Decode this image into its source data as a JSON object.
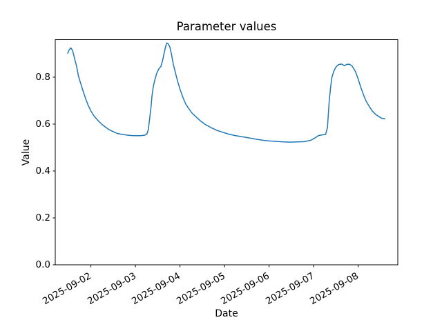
{
  "figure": {
    "title": "Parameter values",
    "xlabel": "Date",
    "ylabel": "Value"
  },
  "chart_data": {
    "type": "line",
    "title": "Parameter values",
    "xlabel": "Date",
    "ylabel": "Value",
    "grid": false,
    "legend": "none",
    "background_color": "#ffffff",
    "x_axis": {
      "unit": "days since 2025-09-01 00:00",
      "lim": [
        0.2,
        7.89
      ],
      "tick_rotation_deg": 30,
      "ticks": [
        {
          "t": 1,
          "label": "2025-09-02"
        },
        {
          "t": 2,
          "label": "2025-09-03"
        },
        {
          "t": 3,
          "label": "2025-09-04"
        },
        {
          "t": 4,
          "label": "2025-09-05"
        },
        {
          "t": 5,
          "label": "2025-09-06"
        },
        {
          "t": 6,
          "label": "2025-09-07"
        },
        {
          "t": 7,
          "label": "2025-09-08"
        }
      ]
    },
    "y_axis": {
      "lim": [
        0,
        0.96
      ],
      "ticks": [
        0.0,
        0.2,
        0.4,
        0.6,
        0.8
      ]
    },
    "series": [
      {
        "name": "parameter-values",
        "color": "#1f77b4",
        "line_width": 1.5,
        "points": [
          [
            0.48,
            0.902
          ],
          [
            0.51,
            0.916
          ],
          [
            0.55,
            0.925
          ],
          [
            0.59,
            0.913
          ],
          [
            0.63,
            0.883
          ],
          [
            0.68,
            0.845
          ],
          [
            0.72,
            0.806
          ],
          [
            0.77,
            0.774
          ],
          [
            0.82,
            0.744
          ],
          [
            0.88,
            0.709
          ],
          [
            0.94,
            0.68
          ],
          [
            1.0,
            0.656
          ],
          [
            1.08,
            0.632
          ],
          [
            1.16,
            0.615
          ],
          [
            1.24,
            0.6
          ],
          [
            1.32,
            0.588
          ],
          [
            1.41,
            0.576
          ],
          [
            1.5,
            0.568
          ],
          [
            1.59,
            0.56
          ],
          [
            1.7,
            0.556
          ],
          [
            1.81,
            0.553
          ],
          [
            1.92,
            0.551
          ],
          [
            2.03,
            0.55
          ],
          [
            2.14,
            0.551
          ],
          [
            2.22,
            0.553
          ],
          [
            2.26,
            0.559
          ],
          [
            2.29,
            0.577
          ],
          [
            2.32,
            0.624
          ],
          [
            2.35,
            0.674
          ],
          [
            2.37,
            0.718
          ],
          [
            2.4,
            0.759
          ],
          [
            2.44,
            0.792
          ],
          [
            2.48,
            0.818
          ],
          [
            2.53,
            0.837
          ],
          [
            2.57,
            0.845
          ],
          [
            2.61,
            0.871
          ],
          [
            2.65,
            0.907
          ],
          [
            2.68,
            0.933
          ],
          [
            2.705,
            0.946
          ],
          [
            2.73,
            0.943
          ],
          [
            2.77,
            0.93
          ],
          [
            2.81,
            0.898
          ],
          [
            2.85,
            0.856
          ],
          [
            2.9,
            0.818
          ],
          [
            2.95,
            0.78
          ],
          [
            3.01,
            0.744
          ],
          [
            3.07,
            0.712
          ],
          [
            3.13,
            0.685
          ],
          [
            3.19,
            0.668
          ],
          [
            3.27,
            0.647
          ],
          [
            3.37,
            0.629
          ],
          [
            3.47,
            0.612
          ],
          [
            3.58,
            0.597
          ],
          [
            3.71,
            0.584
          ],
          [
            3.83,
            0.573
          ],
          [
            3.96,
            0.565
          ],
          [
            4.1,
            0.557
          ],
          [
            4.24,
            0.551
          ],
          [
            4.39,
            0.546
          ],
          [
            4.55,
            0.541
          ],
          [
            4.7,
            0.536
          ],
          [
            4.86,
            0.531
          ],
          [
            5.01,
            0.528
          ],
          [
            5.17,
            0.526
          ],
          [
            5.32,
            0.524
          ],
          [
            5.48,
            0.523
          ],
          [
            5.63,
            0.524
          ],
          [
            5.79,
            0.525
          ],
          [
            5.94,
            0.531
          ],
          [
            6.05,
            0.543
          ],
          [
            6.11,
            0.551
          ],
          [
            6.19,
            0.554
          ],
          [
            6.27,
            0.556
          ],
          [
            6.31,
            0.585
          ],
          [
            6.33,
            0.641
          ],
          [
            6.35,
            0.698
          ],
          [
            6.38,
            0.754
          ],
          [
            6.41,
            0.798
          ],
          [
            6.45,
            0.824
          ],
          [
            6.5,
            0.843
          ],
          [
            6.56,
            0.854
          ],
          [
            6.63,
            0.856
          ],
          [
            6.69,
            0.849
          ],
          [
            6.75,
            0.855
          ],
          [
            6.81,
            0.855
          ],
          [
            6.87,
            0.846
          ],
          [
            6.94,
            0.824
          ],
          [
            7.0,
            0.792
          ],
          [
            7.06,
            0.756
          ],
          [
            7.12,
            0.725
          ],
          [
            7.18,
            0.697
          ],
          [
            7.25,
            0.675
          ],
          [
            7.32,
            0.655
          ],
          [
            7.4,
            0.64
          ],
          [
            7.48,
            0.63
          ],
          [
            7.54,
            0.624
          ],
          [
            7.6,
            0.623
          ]
        ]
      }
    ]
  }
}
